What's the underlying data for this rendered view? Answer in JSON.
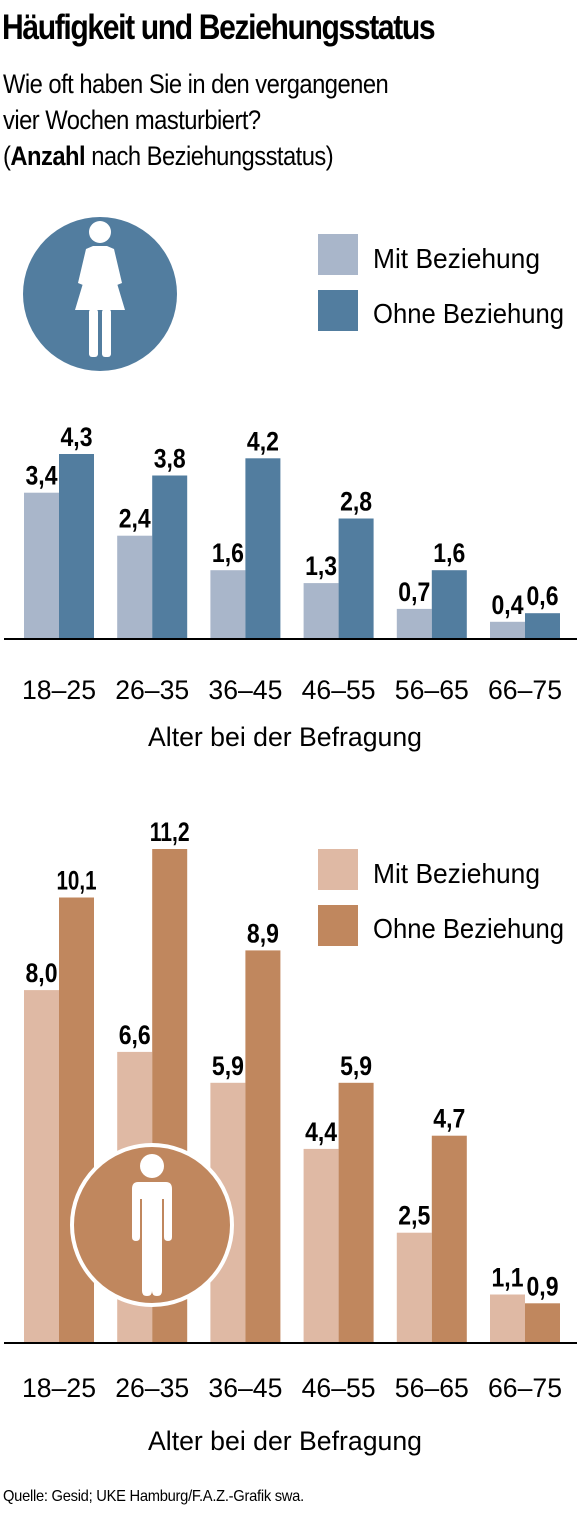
{
  "title": "Häufigkeit und Beziehungsstatus",
  "subtitle": {
    "line1": "Wie oft haben Sie in den vergangenen",
    "line2": "vier Wochen masturbiert?",
    "line3_open": "(",
    "line3_bold": "Anzahl",
    "line3_rest": " nach Beziehungsstatus)"
  },
  "source": "Quelle: Gesid; UKE Hamburg/F.A.Z.-Grafik swa.",
  "icons": {
    "women": "woman-icon",
    "men": "man-icon"
  },
  "chart_data": [
    {
      "type": "bar",
      "group": "women",
      "categories": [
        "18–25",
        "26–35",
        "36–45",
        "46–55",
        "56–65",
        "66–75"
      ],
      "series": [
        {
          "name": "Mit Beziehung",
          "values": [
            3.4,
            2.4,
            1.6,
            1.3,
            0.7,
            0.4
          ],
          "labels": [
            "3,4",
            "2,4",
            "1,6",
            "1,3",
            "0,7",
            "0,4"
          ],
          "color": "#a9b6ca"
        },
        {
          "name": "Ohne Beziehung",
          "values": [
            4.3,
            3.8,
            4.2,
            2.8,
            1.6,
            0.6
          ],
          "labels": [
            "4,3",
            "3,8",
            "4,2",
            "2,8",
            "1,6",
            "0,6"
          ],
          "color": "#527d9f"
        }
      ],
      "xlabel": "Alter bei der Befragung",
      "ylim": [
        0,
        4.3
      ],
      "legend": "top-right",
      "grid": false
    },
    {
      "type": "bar",
      "group": "men",
      "categories": [
        "18–25",
        "26–35",
        "36–45",
        "46–55",
        "56–65",
        "66–75"
      ],
      "series": [
        {
          "name": "Mit Beziehung",
          "values": [
            8.0,
            6.6,
            5.9,
            4.4,
            2.5,
            1.1
          ],
          "labels": [
            "8,0",
            "6,6",
            "5,9",
            "4,4",
            "2,5",
            "1,1"
          ],
          "color": "#dfb9a4"
        },
        {
          "name": "Ohne Beziehung",
          "values": [
            10.1,
            11.2,
            8.9,
            5.9,
            4.7,
            0.9
          ],
          "labels": [
            "10,1",
            "11,2",
            "8,9",
            "5,9",
            "4,7",
            "0,9"
          ],
          "color": "#c0875e"
        }
      ],
      "xlabel": "Alter bei der Befragung",
      "ylim": [
        0,
        11.2
      ],
      "legend": "top-right",
      "grid": false
    }
  ]
}
